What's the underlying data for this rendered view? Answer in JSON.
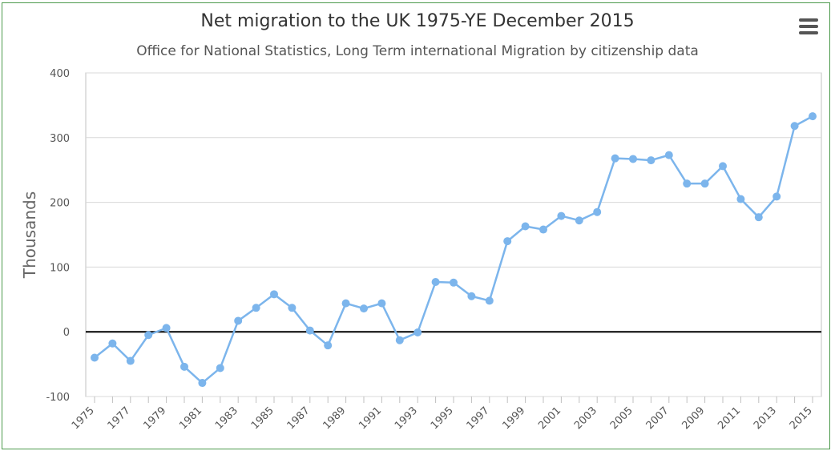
{
  "chart_data": {
    "type": "line",
    "title": "Net migration to the UK 1975-YE December 2015",
    "subtitle": "Office for National Statistics, Long Term international Migration by citizenship data",
    "xlabel": "",
    "ylabel": "Thousands",
    "ylim": [
      -100,
      400
    ],
    "yticks": [
      "-100",
      "0",
      "100",
      "200",
      "300",
      "400"
    ],
    "grid": "horizontal",
    "legend": "none",
    "line_color": "#7cb5ec",
    "zero_line_color": "#000000",
    "xtick_labels": [
      "1975",
      "1977",
      "1979",
      "1981",
      "1983",
      "1985",
      "1987",
      "1989",
      "1991",
      "1993",
      "1995",
      "1997",
      "1999",
      "2001",
      "2003",
      "2005",
      "2007",
      "2009",
      "2011",
      "2013",
      "2015"
    ],
    "x": [
      1975,
      1976,
      1977,
      1978,
      1979,
      1980,
      1981,
      1982,
      1983,
      1984,
      1985,
      1986,
      1987,
      1988,
      1989,
      1990,
      1991,
      1992,
      1993,
      1994,
      1995,
      1996,
      1997,
      1998,
      1999,
      2000,
      2001,
      2002,
      2003,
      2004,
      2005,
      2006,
      2007,
      2008,
      2009,
      2010,
      2011,
      2012,
      2013,
      2014,
      2015
    ],
    "series": [
      {
        "values": [
          -40,
          -18,
          -45,
          -5,
          6,
          -54,
          -79,
          -56,
          17,
          37,
          58,
          37,
          2,
          -21,
          44,
          36,
          44,
          -13,
          -1,
          77,
          76,
          55,
          48,
          140,
          163,
          158,
          179,
          172,
          185,
          268,
          267,
          265,
          273,
          229,
          229,
          256,
          205,
          177,
          209,
          318,
          333
        ]
      }
    ]
  },
  "menu": {
    "icon": "hamburger-menu-icon"
  }
}
